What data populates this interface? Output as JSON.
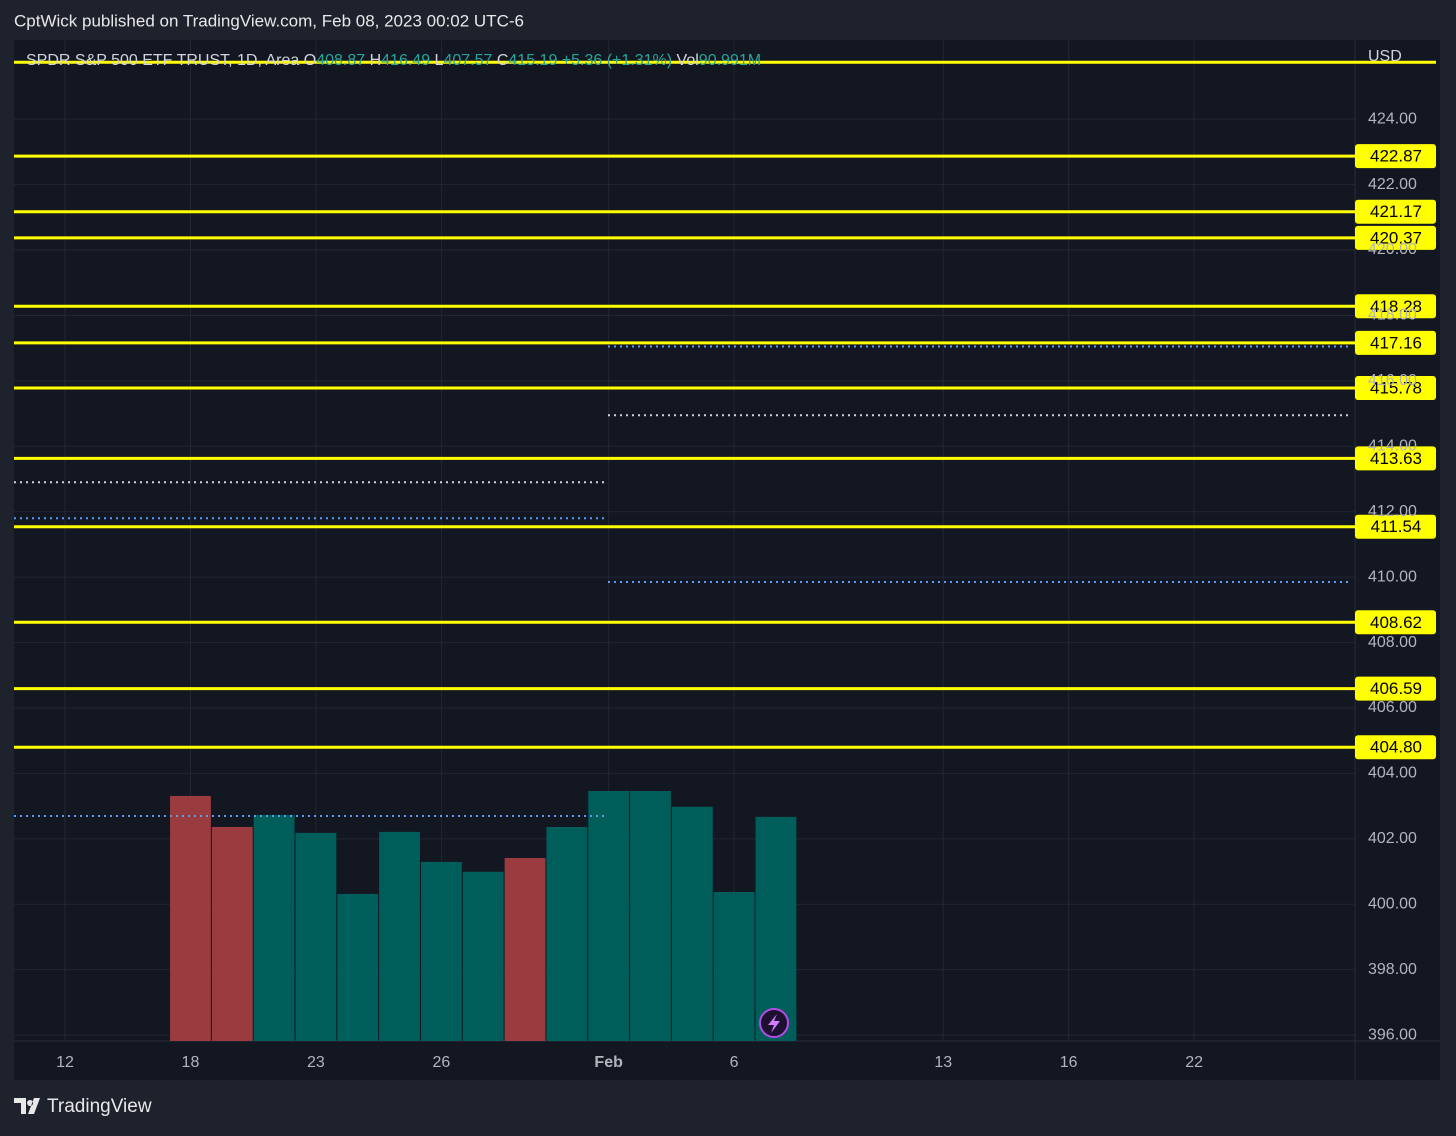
{
  "header": {
    "text": "CptWick published on TradingView.com, Feb 08, 2023 00:02 UTC-6"
  },
  "chart_data": {
    "type": "bar",
    "legend": {
      "symbol": "SPDR S&P 500 ETF TRUST, 1D, Area",
      "open_label": "O",
      "open": 408.87,
      "high_label": "H",
      "high": 416.49,
      "low_label": "L",
      "low": 407.57,
      "close_label": "C",
      "close": 415.19,
      "change": "+5.36 (+1.31%)",
      "volume_label": "Vol",
      "volume": "90.991M"
    },
    "currency": "USD",
    "categories": [
      "12",
      null,
      null,
      "18",
      null,
      null,
      "23",
      null,
      null,
      "26",
      null,
      null,
      null,
      "Feb",
      null,
      null,
      "6",
      null,
      null,
      null,
      null,
      "13",
      null,
      null,
      "16",
      null,
      null,
      "22"
    ],
    "series": [
      {
        "name": "Vol",
        "colors": [
          "#9a3b40",
          "#9a3b40",
          "#9a3b40",
          "#9a3b40",
          "#9a3b40",
          "#005e5a",
          "#005e5a",
          "#005e5a",
          "#005e5a",
          "#005e5a",
          "#005e5a",
          "#9a3b40",
          "#005e5a",
          "#005e5a",
          "#005e5a",
          "#005e5a",
          "#005e5a",
          "#005e5a",
          "#005e5a",
          "#005e5a",
          "#005e5a",
          "#005e5a",
          "#005e5a",
          "#005e5a",
          "#005e5a",
          "#005e5a",
          "#005e5a",
          "#005e5a"
        ],
        "values": [
          null,
          null,
          null,
          99.5,
          86.9,
          91.8,
          84.5,
          59.7,
          84.9,
          72.7,
          68.7,
          74.3,
          86.9,
          101.5,
          101.5,
          95.1,
          60.5,
          90.991,
          null,
          null,
          null,
          null,
          null,
          null,
          null,
          null,
          null,
          null
        ]
      }
    ],
    "ylim": [
      395.82,
      426.42
    ],
    "yticks": [
      {
        "value": 396,
        "label": "396.00"
      },
      {
        "value": 398,
        "label": "398.00"
      },
      {
        "value": 400,
        "label": "400.00"
      },
      {
        "value": 402,
        "label": "402.00"
      },
      {
        "value": 404,
        "label": "404.00"
      },
      {
        "value": 406,
        "label": "406.00"
      },
      {
        "value": 408,
        "label": "408.00"
      },
      {
        "value": 410,
        "label": "410.00"
      },
      {
        "value": 412,
        "label": "412.00"
      },
      {
        "value": 414,
        "label": "414.00"
      },
      {
        "value": 416,
        "label": "416.00"
      },
      {
        "value": 418,
        "label": "418.00"
      },
      {
        "value": 420,
        "label": "420.00"
      },
      {
        "value": 422,
        "label": "422.00"
      },
      {
        "value": 424,
        "label": "424.00"
      }
    ],
    "price_lines": [
      422.87,
      421.17,
      420.37,
      418.28,
      417.16,
      415.78,
      413.63,
      411.54,
      408.62,
      406.59,
      404.8
    ],
    "price_line_labels": [
      "422.87",
      "421.17",
      "420.37",
      "418.28",
      "417.16",
      "415.78",
      "413.63",
      "411.54",
      "408.62",
      "406.59",
      "404.80"
    ],
    "unlabeled_lines": [
      425.74
    ],
    "line_color": "#ffff00",
    "dotted_lines": [
      {
        "value": 420.37,
        "color": "#a8d8ff",
        "span": "full"
      },
      {
        "value": 417.05,
        "color": "#5b9cf6",
        "span": "right"
      },
      {
        "value": 414.95,
        "color": "#d1d4dc",
        "span": "right"
      },
      {
        "value": 412.9,
        "color": "#d1d4dc",
        "span": "left"
      },
      {
        "value": 411.8,
        "color": "#5b9cf6",
        "span": "left"
      },
      {
        "value": 409.85,
        "color": "#5b9cf6",
        "span": "right"
      },
      {
        "value": 402.7,
        "color": "#5b9cf6",
        "span": "left"
      }
    ],
    "grid": true
  },
  "footer": {
    "brand": "TradingView"
  }
}
